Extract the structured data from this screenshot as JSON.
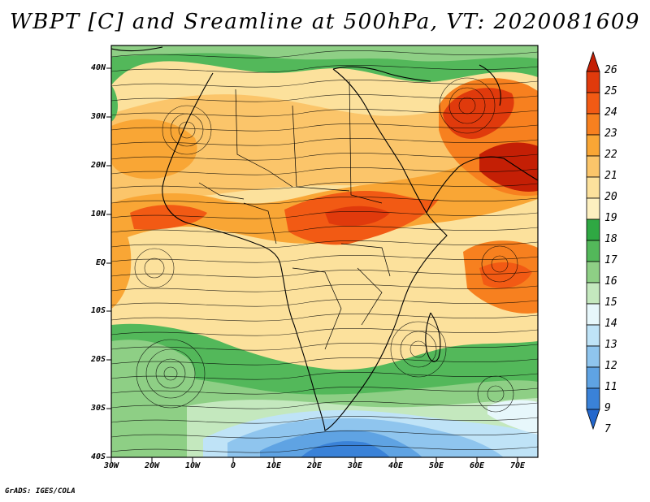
{
  "title": "WBPT [C] and Sreamline at 500hPa, VT: 2020081609",
  "map": {
    "lat_ticks": [
      "40N",
      "30N",
      "20N",
      "10N",
      "EQ",
      "10S",
      "20S",
      "30S",
      "40S"
    ],
    "lon_ticks": [
      "30W",
      "20W",
      "10W",
      "0",
      "10E",
      "20E",
      "30E",
      "40E",
      "50E",
      "60E",
      "70E"
    ]
  },
  "colorbar": {
    "levels": [
      "26",
      "25",
      "24",
      "23",
      "22",
      "21",
      "20",
      "19",
      "18",
      "17",
      "16",
      "15",
      "14",
      "13",
      "12",
      "11",
      "9",
      "7"
    ],
    "colors": [
      "#c41f05",
      "#e03a0c",
      "#f25a14",
      "#f7801f",
      "#f9a635",
      "#fbc56a",
      "#fce19c",
      "#fdf0c0",
      "#2fa843",
      "#53b85a",
      "#8ecf85",
      "#c4e8be",
      "#e7f7fb",
      "#bfe3f7",
      "#8fc5ee",
      "#5fa3e3",
      "#3a82d8",
      "#2367cc"
    ]
  },
  "credit": "GrADS: IGES/COLA"
}
